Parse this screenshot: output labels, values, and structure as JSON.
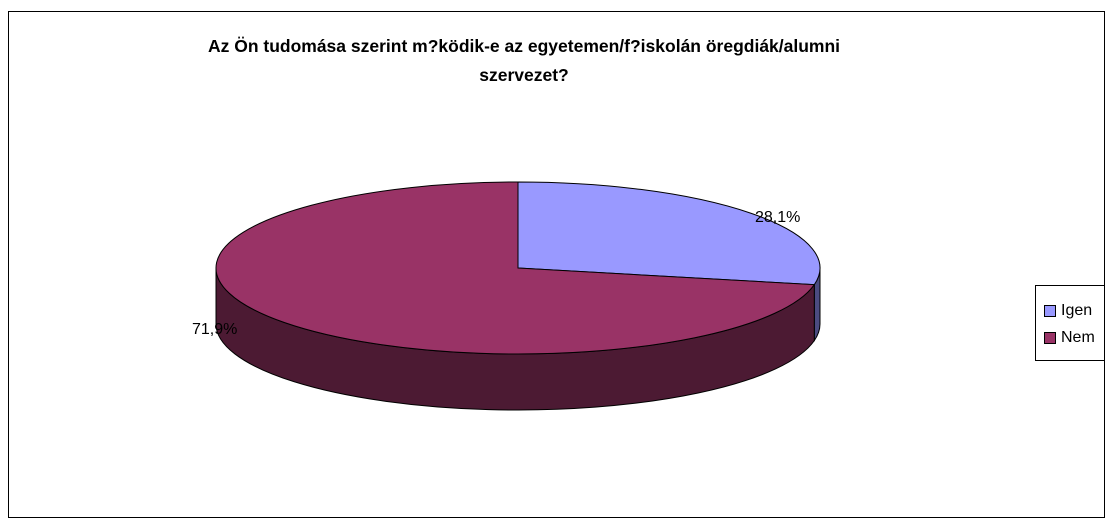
{
  "chart_data": {
    "type": "pie",
    "title_lines": [
      "Az Ön tudomása szerint m?ködik-e az egyetemen/f?iskolán öregdiák/alumni",
      "szervezet?"
    ],
    "slices": [
      {
        "label": "Igen",
        "value": 28.1,
        "display": "28,1%",
        "color": "#9999ff",
        "side_color": "#4b4b80"
      },
      {
        "label": "Nem",
        "value": 71.9,
        "display": "71,9%",
        "color": "#993366",
        "side_color": "#4c1a33"
      }
    ],
    "legend": {
      "position": "right",
      "items": [
        "Igen",
        "Nem"
      ]
    },
    "style": "3d"
  }
}
